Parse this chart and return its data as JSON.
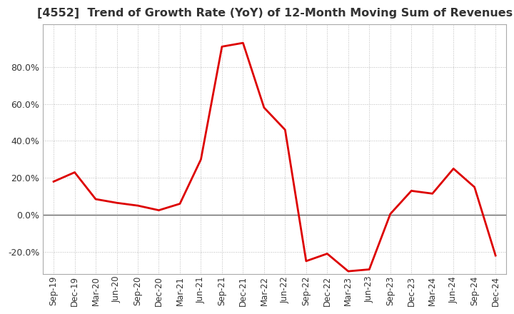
{
  "title": "[4552]  Trend of Growth Rate (YoY) of 12-Month Moving Sum of Revenues",
  "title_fontsize": 11.5,
  "title_color": "#333333",
  "line_color": "#DD0000",
  "background_color": "#FFFFFF",
  "plot_bg_color": "#FFFFFF",
  "grid_color": "#BBBBBB",
  "zero_line_color": "#666666",
  "border_color": "#AAAAAA",
  "ylim": [
    -32,
    103
  ],
  "yticks": [
    -20.0,
    0.0,
    20.0,
    40.0,
    60.0,
    80.0
  ],
  "x_labels": [
    "Sep-19",
    "Dec-19",
    "Mar-20",
    "Jun-20",
    "Sep-20",
    "Dec-20",
    "Mar-21",
    "Jun-21",
    "Sep-21",
    "Dec-21",
    "Mar-22",
    "Jun-22",
    "Sep-22",
    "Dec-22",
    "Mar-23",
    "Jun-23",
    "Sep-23",
    "Dec-23",
    "Mar-24",
    "Jun-24",
    "Sep-24",
    "Dec-24"
  ],
  "y_values": [
    18.0,
    23.0,
    8.5,
    6.5,
    5.0,
    2.5,
    6.0,
    30.0,
    91.0,
    93.0,
    58.0,
    46.0,
    -25.0,
    -21.0,
    -30.5,
    -29.5,
    0.5,
    13.0,
    11.5,
    25.0,
    15.0,
    -22.0
  ],
  "tick_label_fontsize": 8.5,
  "ytick_label_fontsize": 9.0
}
